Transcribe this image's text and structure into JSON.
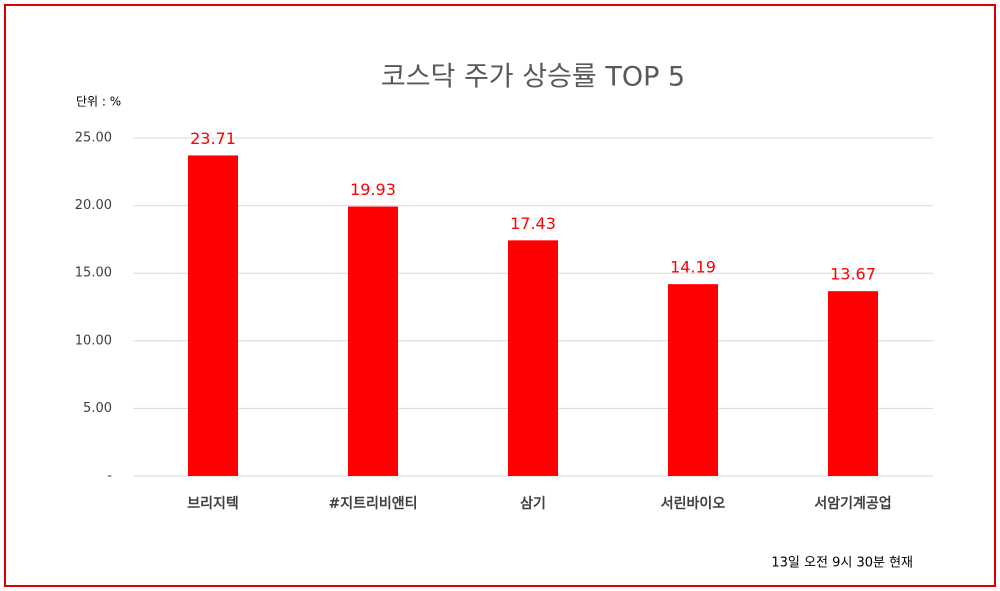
{
  "chart_data": {
    "type": "bar",
    "title": "코스닥 주가 상승률 TOP 5",
    "unit_label": "단위 : %",
    "footnote": "13일  오전 9시 30분 현재",
    "categories": [
      "브리지텍",
      "#지트리비앤티",
      "삼기",
      "서린바이오",
      "서암기계공업"
    ],
    "values": [
      23.71,
      19.93,
      17.43,
      14.19,
      13.67
    ],
    "color": "#ff0000",
    "ylim": [
      0,
      25
    ],
    "yticks": [
      {
        "value": 0,
        "label": "-"
      },
      {
        "value": 5,
        "label": "5.00"
      },
      {
        "value": 10,
        "label": "10.00"
      },
      {
        "value": 15,
        "label": "15.00"
      },
      {
        "value": 20,
        "label": "20.00"
      },
      {
        "value": 25,
        "label": "25.00"
      }
    ],
    "grid": true
  }
}
